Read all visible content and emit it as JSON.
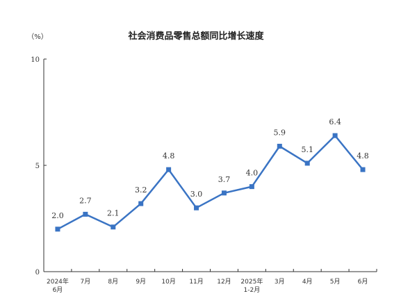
{
  "chart_data": {
    "type": "line",
    "title": "社会消费品零售总额同比增长速度",
    "unit_label": "（%）",
    "categories": [
      [
        "2024年",
        "6月"
      ],
      [
        "7月"
      ],
      [
        "8月"
      ],
      [
        "9月"
      ],
      [
        "10月"
      ],
      [
        "11月"
      ],
      [
        "12月"
      ],
      [
        "2025年",
        "1-2月"
      ],
      [
        "3月"
      ],
      [
        "4月"
      ],
      [
        "5月"
      ],
      [
        "6月"
      ]
    ],
    "values": [
      2.0,
      2.7,
      2.1,
      3.2,
      4.8,
      3.0,
      3.7,
      4.0,
      5.9,
      5.1,
      6.4,
      4.8
    ],
    "value_labels": [
      "2.0",
      "2.7",
      "2.1",
      "3.2",
      "4.8",
      "3.0",
      "3.7",
      "4.0",
      "5.9",
      "5.1",
      "6.4",
      "4.8"
    ],
    "ylim": [
      0,
      10
    ],
    "yticks": [
      0,
      5,
      10
    ],
    "line_color": "#3a74c4",
    "axis_color": "#333333",
    "grid": false,
    "legend": "none"
  }
}
